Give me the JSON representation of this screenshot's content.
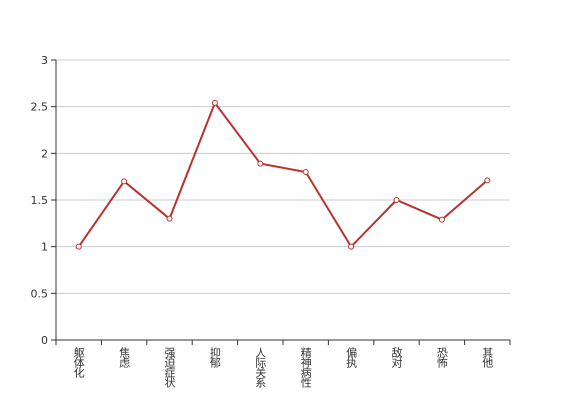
{
  "chart_data": {
    "type": "line",
    "categories": [
      "躯体化",
      "焦虑",
      "强迫症状",
      "抑郁",
      "人际关系",
      "精神病性",
      "偏执",
      "敌对",
      "恐怖",
      "其他"
    ],
    "values": [
      1,
      1.7,
      1.3,
      2.54,
      1.89,
      1.8,
      1,
      1.5,
      1.29,
      1.71
    ],
    "color": "#b83330",
    "ylim": [
      0,
      3
    ],
    "yticks": [
      0,
      0.5,
      1,
      1.5,
      2,
      2.5,
      3
    ],
    "grid": true
  }
}
